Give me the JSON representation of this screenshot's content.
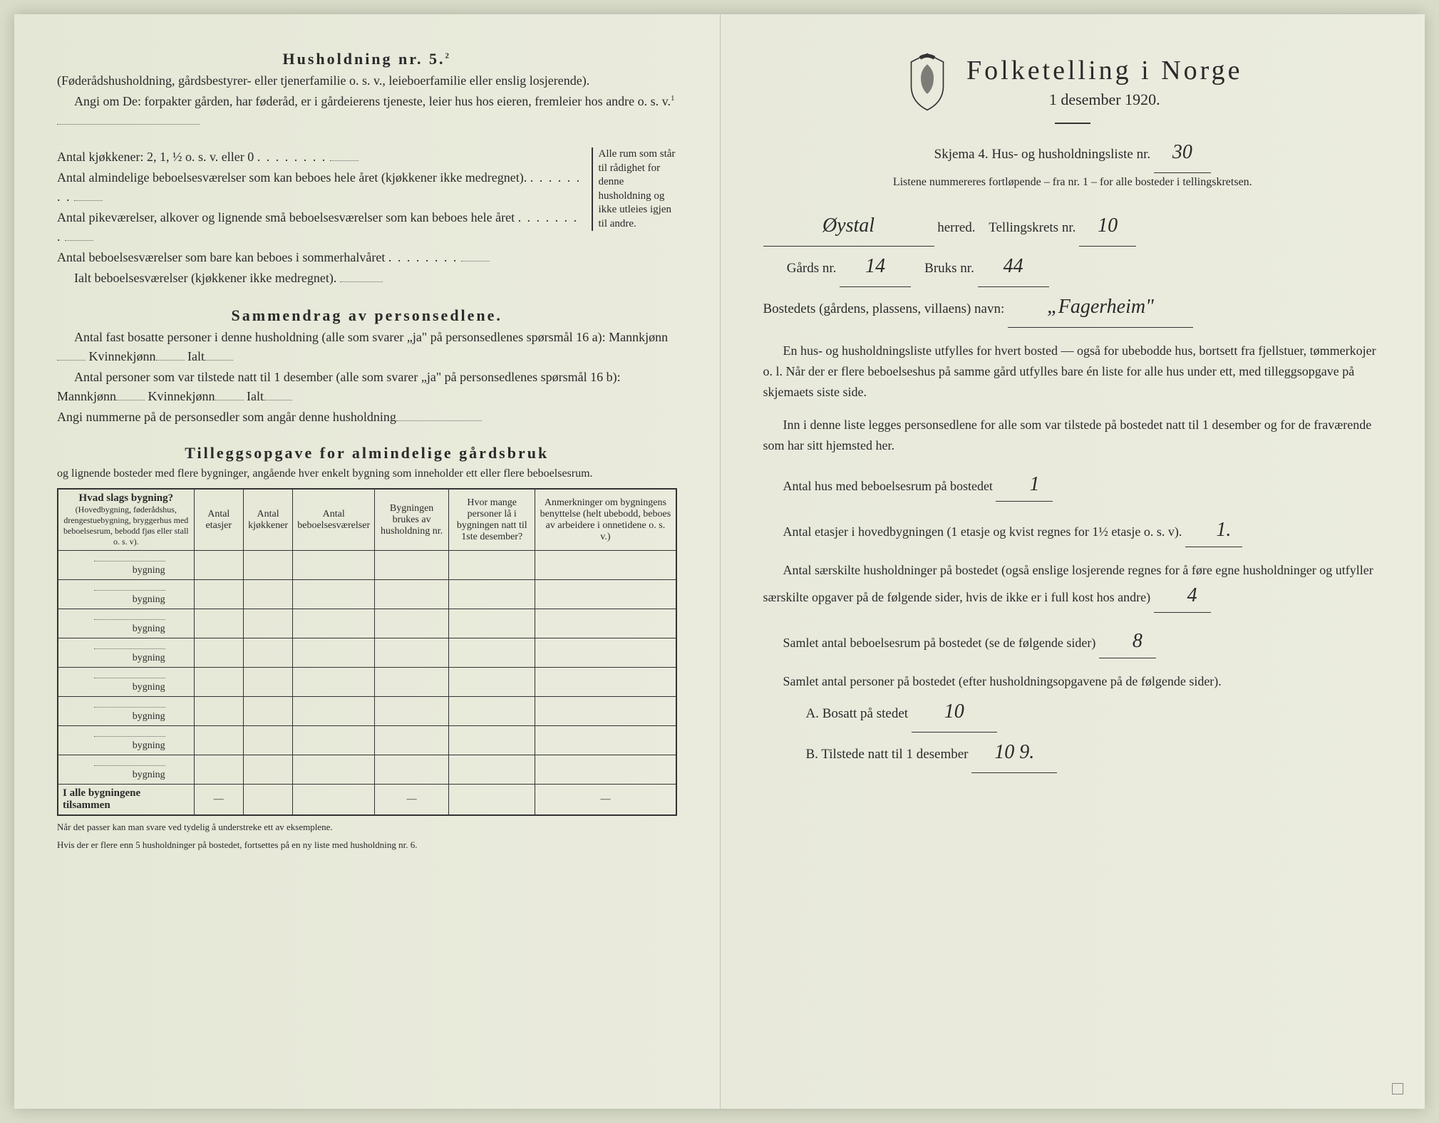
{
  "left": {
    "heading": "Husholdning nr. 5.",
    "heading_sup": "2",
    "intro1": "(Føderådshusholdning, gårdsbestyrer- eller tjenerfamilie o. s. v., leieboerfamilie eller enslig losjerende).",
    "intro2": "Angi om De: forpakter gården, har føderåd, er i gårdeierens tjeneste, leier hus hos eieren, fremleier hos andre o. s. v.",
    "intro2_sup": "1",
    "kitchens_label": "Antal kjøkkener: 2, 1, ½ o. s. v. eller 0",
    "rooms1": "Antal almindelige beboelsesværelser som kan beboes hele året (kjøkkener ikke medregnet).",
    "rooms2": "Antal pikeværelser, alkover og lignende små beboelsesværelser som kan beboes hele året",
    "rooms3": "Antal beboelsesværelser som bare kan beboes i sommerhalvåret",
    "rooms_total": "Ialt beboelsesværelser (kjøkkener ikke medregnet).",
    "bracket1": "Alle rum som står til rådighet for denne husholdning og ikke utleies igjen til andre.",
    "summary_heading": "Sammendrag av personsedlene.",
    "summary1": "Antal fast bosatte personer i denne husholdning (alle som svarer „ja\" på personsedlenes spørsmål 16 a): Mannkjønn",
    "summary1b": "Kvinnekjønn",
    "summary1c": "Ialt",
    "summary2": "Antal personer som var tilstede natt til 1 desember (alle som svarer „ja\" på personsedlenes spørsmål 16 b): Mannkjønn",
    "summary2b": "Kvinnekjønn",
    "summary2c": "Ialt",
    "summary3": "Angi nummerne på de personsedler som angår denne husholdning",
    "tillegg_heading": "Tilleggsopgave for almindelige gårdsbruk",
    "tillegg_sub": "og lignende bosteder med flere bygninger, angående hver enkelt bygning som inneholder ett eller flere beboelsesrum.",
    "table": {
      "headers": [
        "Hvad slags bygning?",
        "Antal etasjer",
        "Antal kjøkkener",
        "Antal beboelsesværelser",
        "Bygningen brukes av husholdning nr.",
        "Hvor mange personer lå i bygningen natt til 1ste desember?",
        "Anmerkninger om bygningens benyttelse (helt ubebodd, beboes av arbeidere i onnetidene o. s. v.)"
      ],
      "header_sub": "(Hovedbygning, føderådshus, drengestuebygning, bryggerhus med beboelsesrum, bebodd fjøs eller stall o. s. v).",
      "row_label": "bygning",
      "total_label": "I alle bygningene tilsammen",
      "row_count": 8
    },
    "footer1": "Når det passer kan man svare ved tydelig å understreke ett av eksemplene.",
    "footer2": "Hvis der er flere enn 5 husholdninger på bostedet, fortsettes på en ny liste med husholdning nr. 6."
  },
  "right": {
    "title": "Folketelling i Norge",
    "subtitle": "1 desember 1920.",
    "skjema_label": "Skjema 4.  Hus- og husholdningsliste nr.",
    "skjema_nr": "30",
    "listene_note": "Listene nummereres fortløpende – fra nr. 1 – for alle bosteder i tellingskretsen.",
    "herred_value": "Øystal",
    "herred_label": "herred.",
    "krets_label": "Tellingskrets nr.",
    "krets_value": "10",
    "gards_label": "Gårds nr.",
    "gards_value": "14",
    "bruks_label": "Bruks nr.",
    "bruks_value": "44",
    "bosted_label": "Bostedets (gårdens, plassens, villaens) navn:",
    "bosted_value": "„Fagerheim\"",
    "para1": "En hus- og husholdningsliste utfylles for hvert bosted — også for ubebodde hus, bortsett fra fjellstuer, tømmerkojer o. l. Når der er flere beboelseshus på samme gård utfylles bare én liste for alle hus under ett, med tilleggsopgave på skjemaets siste side.",
    "para2": "Inn i denne liste legges personsedlene for alle som var tilstede på bostedet natt til 1 desember og for de fraværende som har sitt hjemsted her.",
    "q1": "Antal hus med beboelsesrum på bostedet",
    "q1_val": "1",
    "q2a": "Antal etasjer i hovedbygningen (1 etasje og kvist regnes for 1½ etasje o. s. v).",
    "q2_val": "1.",
    "q3": "Antal særskilte husholdninger på bostedet (også enslige losjerende regnes for å føre egne husholdninger og utfyller særskilte opgaver på de følgende sider, hvis de ikke er i full kost hos andre)",
    "q3_val": "4",
    "q4": "Samlet antal beboelsesrum på bostedet (se de følgende sider)",
    "q4_val": "8",
    "q5": "Samlet antal personer på bostedet (efter husholdningsopgavene på de følgende sider).",
    "qA": "A. Bosatt på stedet",
    "qA_val": "10",
    "qB": "B. Tilstede natt til 1 desember",
    "qB_val": "10 9."
  }
}
